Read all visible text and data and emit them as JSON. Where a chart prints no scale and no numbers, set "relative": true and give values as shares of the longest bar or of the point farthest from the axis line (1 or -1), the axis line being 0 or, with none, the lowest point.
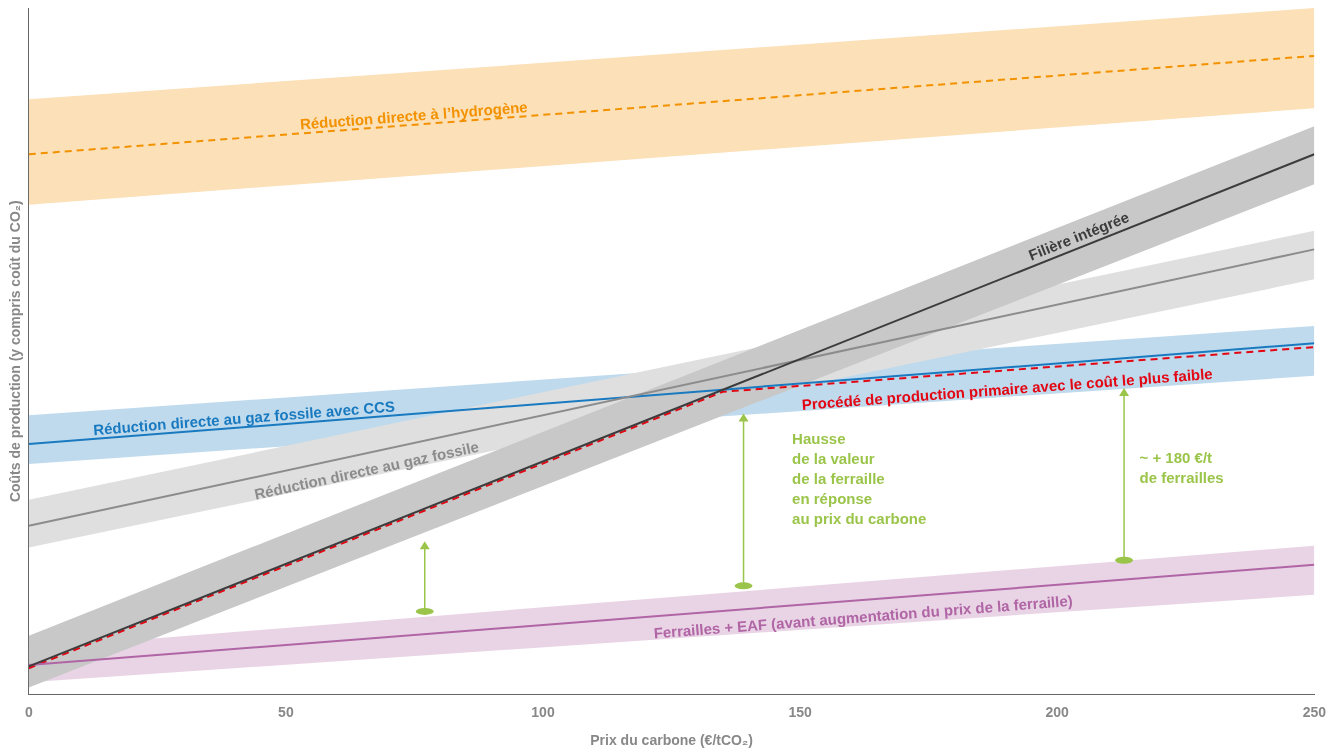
{
  "chart_data": {
    "type": "line",
    "relative": true,
    "xlabel": "Prix du carbone (€/tCO₂)",
    "ylabel": "Coûts de production (y compris coût du CO₂)",
    "xlim": [
      0,
      250
    ],
    "xticks": [
      0,
      50,
      100,
      150,
      200,
      250
    ],
    "grid": false,
    "legend": false,
    "marker": "none",
    "series": [
      {
        "name": "Réduction directe à l’hydrogène",
        "color": "#f39200",
        "line_style": "dashed",
        "x": [
          0,
          250
        ],
        "values": [
          0.846,
          1.0
        ],
        "lower": [
          0.767,
          0.918
        ],
        "upper": [
          0.932,
          1.075
        ]
      },
      {
        "name": "Filière intégrée",
        "color": "#3c3c3c",
        "x": [
          0,
          250
        ],
        "values": [
          0.044,
          0.846
        ],
        "lower": [
          0.011,
          0.799
        ],
        "upper": [
          0.092,
          0.89
        ]
      },
      {
        "name": "Réduction directe au gaz fossile",
        "color": "#8c8c8c",
        "x": [
          0,
          250
        ],
        "values": [
          0.264,
          0.697
        ],
        "lower": [
          0.23,
          0.65
        ],
        "upper": [
          0.305,
          0.726
        ]
      },
      {
        "name": "Réduction directe au gaz fossile avec CCS",
        "color": "#1a7ac0",
        "x": [
          0,
          250
        ],
        "values": [
          0.392,
          0.55
        ],
        "lower": [
          0.361,
          0.499
        ],
        "upper": [
          0.437,
          0.577
        ]
      },
      {
        "name": "Ferrailles + EAF (avant augmentation du prix de la ferraille)",
        "color": "#b065a5",
        "x": [
          0,
          250
        ],
        "values": [
          0.046,
          0.203
        ],
        "lower": [
          0.019,
          0.156
        ],
        "upper": [
          0.072,
          0.233
        ]
      },
      {
        "name": "Procédé de production primaire avec le coût le plus faible",
        "color": "#e30613",
        "line_style": "dashed",
        "x": [
          0,
          135,
          250
        ],
        "values": [
          0.041,
          0.474,
          0.544
        ]
      }
    ],
    "annotations": [
      "Hausse\nde la valeur\nde la ferraille\nen réponse\nau prix du carbone",
      "~ + 180 €/t\nde ferrailles"
    ]
  }
}
